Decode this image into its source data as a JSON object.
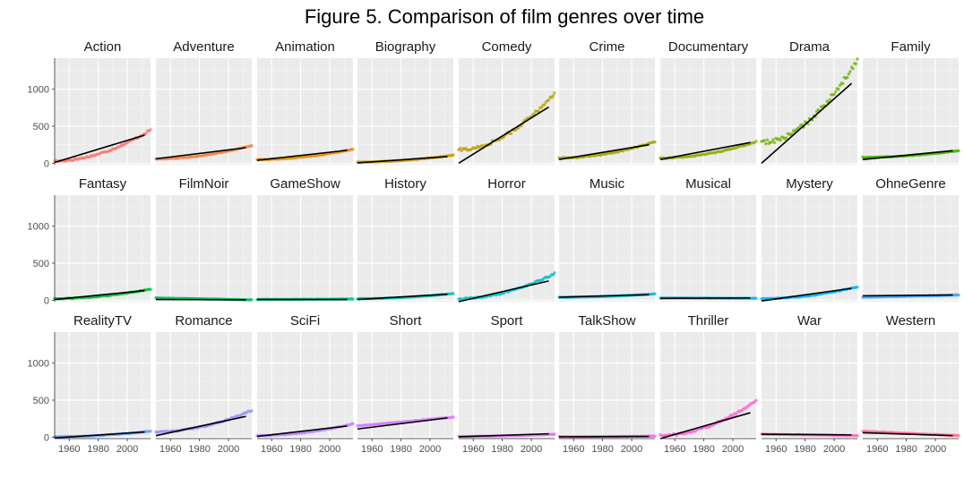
{
  "chart_data": {
    "type": "scatter",
    "title": "Figure 5. Comparison of film genres over time",
    "xlabel": "",
    "ylabel": "",
    "xlim": [
      1950,
      2016
    ],
    "ylim": [
      -20,
      1420
    ],
    "x_ticks": [
      1960,
      1980,
      2000
    ],
    "y_ticks": [
      0,
      500,
      1000
    ],
    "facet_columns": 9,
    "grid": true,
    "trend_line_color": "#000000",
    "panel_background": "#ebebeb",
    "panels": [
      {
        "name": "Action",
        "color": "#F8766D",
        "start": 30,
        "end": 450,
        "fit": [
          10,
          380
        ]
      },
      {
        "name": "Adventure",
        "color": "#EE8043",
        "start": 60,
        "end": 240,
        "fit": [
          60,
          210
        ]
      },
      {
        "name": "Animation",
        "color": "#E38900",
        "start": 50,
        "end": 190,
        "fit": [
          40,
          175
        ]
      },
      {
        "name": "Biography",
        "color": "#C59900",
        "start": 15,
        "end": 110,
        "fit": [
          5,
          90
        ]
      },
      {
        "name": "Comedy",
        "color": "#B79F00",
        "start": 180,
        "end": 950,
        "fit": [
          0,
          760
        ]
      },
      {
        "name": "Crime",
        "color": "#A3A500",
        "start": 70,
        "end": 290,
        "fit": [
          50,
          250
        ]
      },
      {
        "name": "Documentary",
        "color": "#8DAB00",
        "start": 70,
        "end": 290,
        "fit": [
          50,
          280
        ]
      },
      {
        "name": "Drama",
        "color": "#6BB100",
        "start": 280,
        "end": 1400,
        "fit": [
          0,
          1080
        ]
      },
      {
        "name": "Family",
        "color": "#39B600",
        "start": 80,
        "end": 170,
        "fit": [
          50,
          170
        ]
      },
      {
        "name": "Fantasy",
        "color": "#00BA38",
        "start": 20,
        "end": 150,
        "fit": [
          10,
          130
        ]
      },
      {
        "name": "FilmNoir",
        "color": "#00BD5C",
        "start": 30,
        "end": 5,
        "fit": [
          10,
          5
        ]
      },
      {
        "name": "GameShow",
        "color": "#00C08B",
        "start": 10,
        "end": 15,
        "fit": [
          10,
          10
        ]
      },
      {
        "name": "History",
        "color": "#00C1AA",
        "start": 20,
        "end": 90,
        "fit": [
          10,
          80
        ]
      },
      {
        "name": "Horror",
        "color": "#00BFC4",
        "start": 20,
        "end": 360,
        "fit": [
          -20,
          260
        ]
      },
      {
        "name": "Music",
        "color": "#00BCD8",
        "start": 40,
        "end": 85,
        "fit": [
          40,
          75
        ]
      },
      {
        "name": "Musical",
        "color": "#00B8E7",
        "start": 30,
        "end": 25,
        "fit": [
          25,
          30
        ]
      },
      {
        "name": "Mystery",
        "color": "#00B0F6",
        "start": 20,
        "end": 180,
        "fit": [
          -10,
          160
        ]
      },
      {
        "name": "OhneGenre",
        "color": "#35A2FF",
        "start": 40,
        "end": 70,
        "fit": [
          60,
          70
        ]
      },
      {
        "name": "RealityTV",
        "color": "#619CFF",
        "start": 5,
        "end": 80,
        "fit": [
          -10,
          70
        ]
      },
      {
        "name": "Romance",
        "color": "#9590FF",
        "start": 70,
        "end": 360,
        "fit": [
          20,
          280
        ]
      },
      {
        "name": "SciFi",
        "color": "#B983FF",
        "start": 20,
        "end": 180,
        "fit": [
          10,
          150
        ]
      },
      {
        "name": "Short",
        "color": "#D277FF",
        "start": 150,
        "end": 270,
        "fit": [
          110,
          260
        ]
      },
      {
        "name": "Sport",
        "color": "#E76BF3",
        "start": 10,
        "end": 40,
        "fit": [
          5,
          45
        ]
      },
      {
        "name": "TalkShow",
        "color": "#F564E3",
        "start": 5,
        "end": 15,
        "fit": [
          5,
          10
        ]
      },
      {
        "name": "Thriller",
        "color": "#FD61D1",
        "start": 20,
        "end": 490,
        "fit": [
          -20,
          330
        ]
      },
      {
        "name": "War",
        "color": "#FF62BC",
        "start": 40,
        "end": 20,
        "fit": [
          40,
          30
        ]
      },
      {
        "name": "Western",
        "color": "#FF6C91",
        "start": 80,
        "end": 20,
        "fit": [
          60,
          20
        ]
      }
    ]
  }
}
